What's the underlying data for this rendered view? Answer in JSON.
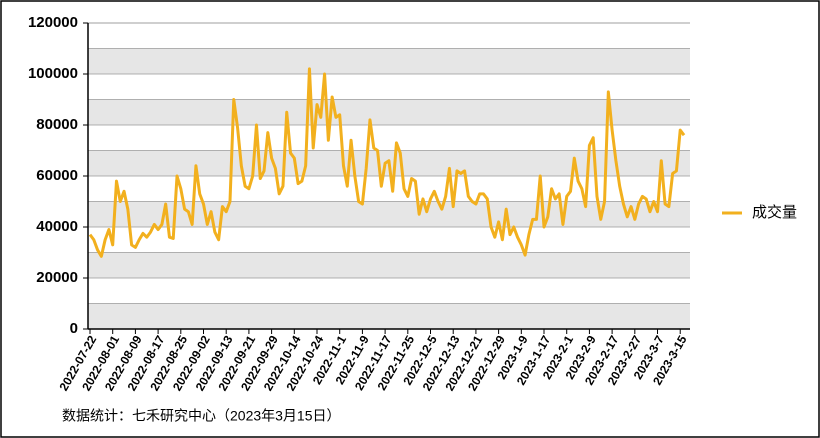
{
  "chart_data": {
    "type": "line",
    "categories": [
      "2022-07-22",
      null,
      null,
      null,
      null,
      null,
      "2022-08-01",
      null,
      null,
      null,
      null,
      null,
      "2022-08-09",
      null,
      null,
      null,
      null,
      null,
      "2022-08-17",
      null,
      null,
      null,
      null,
      null,
      "2022-08-25",
      null,
      null,
      null,
      null,
      null,
      "2022-09-02",
      null,
      null,
      null,
      null,
      null,
      "2022-09-13",
      null,
      null,
      null,
      null,
      null,
      "2022-09-21",
      null,
      null,
      null,
      null,
      null,
      "2022-09-29",
      null,
      null,
      null,
      null,
      null,
      "2022-10-14",
      null,
      null,
      null,
      null,
      null,
      "2022-10-24",
      null,
      null,
      null,
      null,
      null,
      "2022-11-1",
      null,
      null,
      null,
      null,
      null,
      "2022-11-9",
      null,
      null,
      null,
      null,
      null,
      "2022-11-17",
      null,
      null,
      null,
      null,
      null,
      "2022-11-25",
      null,
      null,
      null,
      null,
      null,
      "2022-12-5",
      null,
      null,
      null,
      null,
      null,
      "2022-12-13",
      null,
      null,
      null,
      null,
      null,
      "2022-12-21",
      null,
      null,
      null,
      null,
      null,
      "2022-12-29",
      null,
      null,
      null,
      null,
      null,
      "2023-1-9",
      null,
      null,
      null,
      null,
      null,
      "2023-1-17",
      null,
      null,
      null,
      null,
      null,
      "2023-2-1",
      null,
      null,
      null,
      null,
      null,
      "2023-2-9",
      null,
      null,
      null,
      null,
      null,
      "2023-2-17",
      null,
      null,
      null,
      null,
      null,
      "2023-2-27",
      null,
      null,
      null,
      null,
      null,
      "2023-3-7",
      null,
      null,
      null,
      null,
      null,
      "2023-3-15",
      null
    ],
    "series": [
      {
        "name": "成交量",
        "color": "#f2b01e",
        "values": [
          37000,
          35000,
          31000,
          28500,
          35000,
          39000,
          33000,
          58000,
          50000,
          54000,
          47000,
          33000,
          32000,
          35000,
          37500,
          36000,
          38000,
          41000,
          39000,
          41000,
          49000,
          36000,
          35500,
          60000,
          55000,
          47000,
          46000,
          41000,
          64000,
          53000,
          49000,
          41000,
          46000,
          38000,
          35000,
          48000,
          46000,
          50000,
          90000,
          79000,
          64000,
          56000,
          55000,
          60000,
          80000,
          59000,
          62000,
          77000,
          67000,
          63000,
          53000,
          56000,
          85000,
          69000,
          67000,
          57000,
          58000,
          64000,
          102000,
          71000,
          88000,
          83000,
          100000,
          74000,
          91000,
          83000,
          84000,
          64000,
          56000,
          74000,
          60000,
          50000,
          49000,
          63000,
          82000,
          71000,
          70000,
          56000,
          65000,
          66000,
          54000,
          73000,
          69000,
          55000,
          52000,
          59000,
          58000,
          45000,
          51000,
          46000,
          51000,
          54000,
          50000,
          47000,
          52000,
          63000,
          48000,
          62000,
          61000,
          62000,
          52000,
          50000,
          49000,
          53000,
          53000,
          51000,
          40000,
          36000,
          42000,
          35000,
          47000,
          37000,
          40000,
          36000,
          33000,
          29000,
          37000,
          43000,
          43000,
          60000,
          40000,
          44000,
          55000,
          51000,
          53000,
          41000,
          52000,
          54000,
          67000,
          58000,
          55000,
          48000,
          72000,
          75000,
          52000,
          43000,
          50000,
          93000,
          78000,
          66000,
          56000,
          49000,
          44000,
          48000,
          43000,
          49000,
          52000,
          51000,
          46000,
          50000,
          46000,
          66000,
          49000,
          48000,
          61000,
          62000,
          78000,
          76000
        ]
      }
    ],
    "ylim": [
      0,
      120000
    ],
    "yticks": [
      0,
      20000,
      40000,
      60000,
      80000,
      100000,
      120000
    ],
    "grid": true,
    "legend": "right",
    "source": "数据统计：七禾研究中心（2023年3月15日）"
  }
}
